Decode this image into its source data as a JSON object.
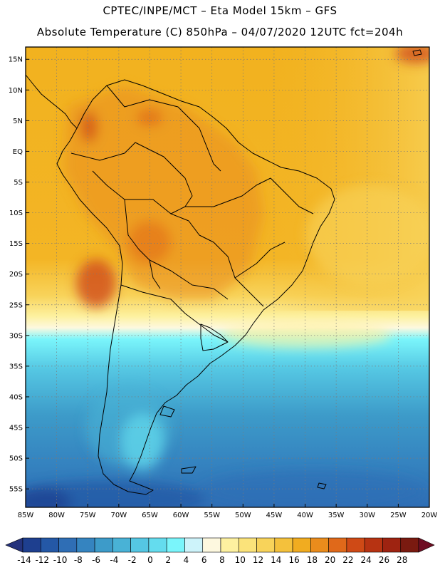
{
  "header": {
    "line1": "CPTEC/INPE/MCT –  Eta Model 15km – GFS",
    "line2": "Absolute Temperature (C) 850hPa – 04/07/2020 12UTC fct=204h"
  },
  "map": {
    "lon_range": [
      -85,
      -20
    ],
    "lat_range": [
      -58,
      17
    ],
    "lat_ticks": [
      {
        "value": 15,
        "label": "15N"
      },
      {
        "value": 10,
        "label": "10N"
      },
      {
        "value": 5,
        "label": "5N"
      },
      {
        "value": 0,
        "label": "EQ"
      },
      {
        "value": -5,
        "label": "5S"
      },
      {
        "value": -10,
        "label": "10S"
      },
      {
        "value": -15,
        "label": "15S"
      },
      {
        "value": -20,
        "label": "20S"
      },
      {
        "value": -25,
        "label": "25S"
      },
      {
        "value": -30,
        "label": "30S"
      },
      {
        "value": -35,
        "label": "35S"
      },
      {
        "value": -40,
        "label": "40S"
      },
      {
        "value": -45,
        "label": "45S"
      },
      {
        "value": -50,
        "label": "50S"
      },
      {
        "value": -55,
        "label": "55S"
      }
    ],
    "lon_ticks": [
      {
        "value": -85,
        "label": "85W"
      },
      {
        "value": -80,
        "label": "80W"
      },
      {
        "value": -75,
        "label": "75W"
      },
      {
        "value": -70,
        "label": "70W"
      },
      {
        "value": -65,
        "label": "65W"
      },
      {
        "value": -60,
        "label": "60W"
      },
      {
        "value": -55,
        "label": "55W"
      },
      {
        "value": -50,
        "label": "50W"
      },
      {
        "value": -45,
        "label": "45W"
      },
      {
        "value": -40,
        "label": "40W"
      },
      {
        "value": -35,
        "label": "35W"
      },
      {
        "value": -30,
        "label": "30W"
      },
      {
        "value": -25,
        "label": "25W"
      },
      {
        "value": -20,
        "label": "20W"
      }
    ]
  },
  "colorbar": {
    "labels": [
      "-14",
      "-12",
      "-10",
      "-8",
      "-6",
      "-4",
      "-2",
      "0",
      "2",
      "4",
      "6",
      "8",
      "10",
      "12",
      "14",
      "16",
      "18",
      "20",
      "22",
      "24",
      "26",
      "28"
    ],
    "colors": [
      "#1e3f8f",
      "#2458a6",
      "#2f6eb5",
      "#3584c0",
      "#3d9bc9",
      "#49b2d6",
      "#55c7e3",
      "#64dcee",
      "#7af5fb",
      "#cdf3fa",
      "#fdf8df",
      "#fdf1a0",
      "#fbe37a",
      "#f8d35a",
      "#f4c13c",
      "#f1ac20",
      "#ea8c1c",
      "#e0691a",
      "#cf4a16",
      "#b73312",
      "#9e2311",
      "#7a1a10"
    ],
    "under_color": "#24327c",
    "over_color": "#6e0d22"
  }
}
